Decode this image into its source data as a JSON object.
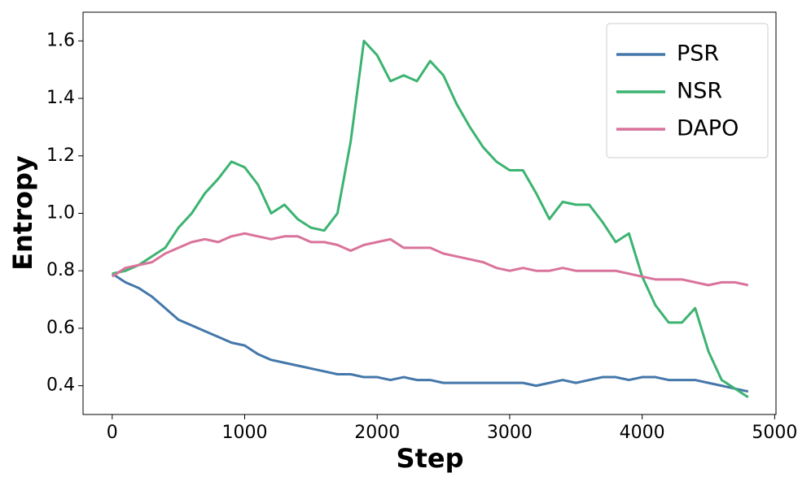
{
  "chart_data": {
    "type": "line",
    "xlabel": "Step",
    "ylabel": "Entropy",
    "x": [
      0,
      100,
      200,
      300,
      400,
      500,
      600,
      700,
      800,
      900,
      1000,
      1100,
      1200,
      1300,
      1400,
      1500,
      1600,
      1700,
      1800,
      1900,
      2000,
      2100,
      2200,
      2300,
      2400,
      2500,
      2600,
      2700,
      2800,
      2900,
      3000,
      3100,
      3200,
      3300,
      3400,
      3500,
      3600,
      3700,
      3800,
      3900,
      4000,
      4100,
      4200,
      4300,
      4400,
      4500,
      4600,
      4700,
      4800
    ],
    "series": [
      {
        "name": "PSR",
        "color": "#4477aa",
        "values": [
          0.79,
          0.76,
          0.74,
          0.71,
          0.67,
          0.63,
          0.61,
          0.59,
          0.57,
          0.55,
          0.54,
          0.51,
          0.49,
          0.48,
          0.47,
          0.46,
          0.45,
          0.44,
          0.44,
          0.43,
          0.43,
          0.42,
          0.43,
          0.42,
          0.42,
          0.41,
          0.41,
          0.41,
          0.41,
          0.41,
          0.41,
          0.41,
          0.4,
          0.41,
          0.42,
          0.41,
          0.42,
          0.43,
          0.43,
          0.42,
          0.43,
          0.43,
          0.42,
          0.42,
          0.42,
          0.41,
          0.4,
          0.39,
          0.38
        ]
      },
      {
        "name": "NSR",
        "color": "#3cb371",
        "values": [
          0.79,
          0.8,
          0.82,
          0.85,
          0.88,
          0.95,
          1.0,
          1.07,
          1.12,
          1.18,
          1.16,
          1.1,
          1.0,
          1.03,
          0.98,
          0.95,
          0.94,
          1.0,
          1.25,
          1.6,
          1.55,
          1.46,
          1.48,
          1.46,
          1.53,
          1.48,
          1.38,
          1.3,
          1.23,
          1.18,
          1.15,
          1.15,
          1.07,
          0.98,
          1.04,
          1.03,
          1.03,
          0.97,
          0.9,
          0.93,
          0.78,
          0.68,
          0.62,
          0.62,
          0.67,
          0.52,
          0.42,
          0.39,
          0.36
        ]
      },
      {
        "name": "DAPO",
        "color": "#d9739b",
        "values": [
          0.78,
          0.81,
          0.82,
          0.83,
          0.86,
          0.88,
          0.9,
          0.91,
          0.9,
          0.92,
          0.93,
          0.92,
          0.91,
          0.92,
          0.92,
          0.9,
          0.9,
          0.89,
          0.87,
          0.89,
          0.9,
          0.91,
          0.88,
          0.88,
          0.88,
          0.86,
          0.85,
          0.84,
          0.83,
          0.81,
          0.8,
          0.81,
          0.8,
          0.8,
          0.81,
          0.8,
          0.8,
          0.8,
          0.8,
          0.79,
          0.78,
          0.77,
          0.77,
          0.77,
          0.76,
          0.75,
          0.76,
          0.76,
          0.75
        ]
      }
    ],
    "xlim": [
      -220,
      5010
    ],
    "xticks": [
      0,
      1000,
      2000,
      3000,
      4000,
      5000
    ],
    "ylim": [
      0.3,
      1.7
    ],
    "yticks": [
      0.4,
      0.6,
      0.8,
      {
        "value": 1.0,
        "label": "1.0"
      },
      1.2,
      1.4,
      1.6
    ],
    "grid": false,
    "legend": "upper right"
  }
}
